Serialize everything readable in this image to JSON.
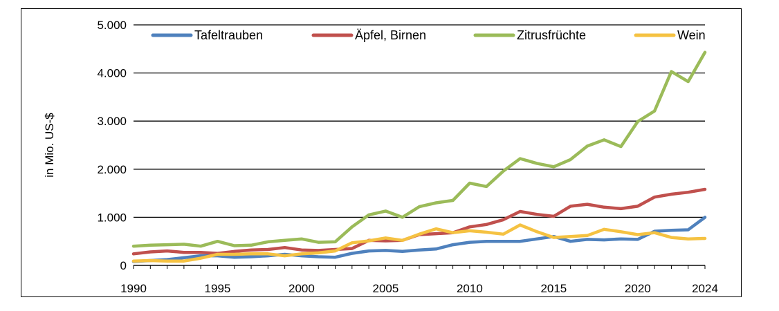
{
  "chart_data": {
    "type": "line",
    "ylabel": "in Mio. US-$",
    "xlabel": "",
    "title": "",
    "ylim": [
      0,
      5000
    ],
    "xlim": [
      1990,
      2024
    ],
    "y_ticks": [
      0,
      1000,
      2000,
      3000,
      4000,
      5000
    ],
    "y_tick_labels": [
      "0",
      "1.000",
      "2.000",
      "3.000",
      "4.000",
      "5.000"
    ],
    "x_ticks": [
      1990,
      1995,
      2000,
      2005,
      2010,
      2015,
      2020,
      2024
    ],
    "x_tick_labels": [
      "1990",
      "1995",
      "2000",
      "2005",
      "2010",
      "2015",
      "2020",
      "2024"
    ],
    "grid": "horizontal",
    "legend_position": "top",
    "x": [
      1990,
      1991,
      1992,
      1993,
      1994,
      1995,
      1996,
      1997,
      1998,
      1999,
      2000,
      2001,
      2002,
      2003,
      2004,
      2005,
      2006,
      2007,
      2008,
      2009,
      2010,
      2011,
      2012,
      2013,
      2014,
      2015,
      2016,
      2017,
      2018,
      2019,
      2020,
      2021,
      2022,
      2023,
      2024
    ],
    "series": [
      {
        "name": "Tafeltrauben",
        "color": "#4f81bd",
        "values": [
          80,
          100,
          120,
          160,
          200,
          200,
          170,
          180,
          200,
          230,
          200,
          180,
          170,
          250,
          300,
          310,
          290,
          320,
          340,
          430,
          480,
          500,
          500,
          500,
          550,
          600,
          500,
          540,
          530,
          550,
          540,
          710,
          730,
          740,
          1000
        ]
      },
      {
        "name": "Äpfel, Birnen",
        "color": "#c0504d",
        "values": [
          240,
          280,
          300,
          270,
          270,
          250,
          290,
          320,
          330,
          370,
          320,
          310,
          330,
          350,
          520,
          510,
          520,
          640,
          660,
          680,
          800,
          850,
          950,
          1120,
          1060,
          1020,
          1230,
          1270,
          1210,
          1180,
          1230,
          1420,
          1480,
          1520,
          1580
        ]
      },
      {
        "name": "Zitrusfrüchte",
        "color": "#9bbb59",
        "values": [
          400,
          420,
          430,
          440,
          400,
          500,
          410,
          420,
          490,
          520,
          550,
          480,
          490,
          800,
          1050,
          1130,
          1000,
          1220,
          1300,
          1350,
          1710,
          1640,
          1960,
          2220,
          2120,
          2050,
          2200,
          2480,
          2610,
          2470,
          2990,
          3210,
          4030,
          3820,
          4430
        ]
      },
      {
        "name": "Wein",
        "color": "#f5c242",
        "values": [
          90,
          100,
          90,
          90,
          150,
          230,
          230,
          240,
          240,
          200,
          240,
          260,
          300,
          470,
          510,
          570,
          520,
          650,
          760,
          680,
          720,
          690,
          650,
          840,
          700,
          580,
          600,
          620,
          750,
          700,
          640,
          680,
          580,
          550,
          560
        ]
      }
    ]
  }
}
